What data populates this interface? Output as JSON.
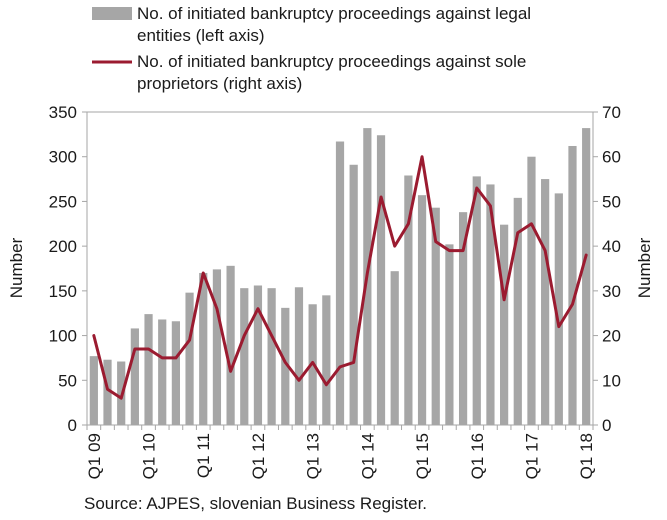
{
  "chart_data": {
    "type": "bar",
    "combo": "bar+line",
    "categories": [
      "Q1 09",
      "Q2 09",
      "Q3 09",
      "Q4 09",
      "Q1 10",
      "Q2 10",
      "Q3 10",
      "Q4 10",
      "Q1 11",
      "Q2 11",
      "Q3 11",
      "Q4 11",
      "Q1 12",
      "Q2 12",
      "Q3 12",
      "Q4 12",
      "Q1 13",
      "Q2 13",
      "Q3 13",
      "Q4 13",
      "Q1 14",
      "Q2 14",
      "Q3 14",
      "Q4 14",
      "Q1 15",
      "Q2 15",
      "Q3 15",
      "Q4 15",
      "Q1 16",
      "Q2 16",
      "Q3 16",
      "Q4 16",
      "Q1 17",
      "Q2 17",
      "Q3 17",
      "Q4 17",
      "Q1 18"
    ],
    "tick_labels": [
      "Q1 09",
      "Q1 10",
      "Q1 11",
      "Q1 12",
      "Q1 13",
      "Q1 14",
      "Q1 15",
      "Q1 16",
      "Q1 17",
      "Q1 18"
    ],
    "series": [
      {
        "name": "No. of initiated bankruptcy proceedings against legal entities (left axis)",
        "type": "bar",
        "axis": "left",
        "color": "#a6a6a6",
        "values": [
          77,
          73,
          71,
          108,
          124,
          118,
          116,
          148,
          170,
          174,
          178,
          153,
          156,
          153,
          131,
          154,
          135,
          145,
          317,
          291,
          332,
          324,
          172,
          279,
          257,
          243,
          202,
          238,
          278,
          269,
          224,
          254,
          300,
          275,
          259,
          312,
          332
        ]
      },
      {
        "name": "No. of initiated bankruptcy proceedings against sole proprietors (right axis)",
        "type": "line",
        "axis": "right",
        "color": "#9b1b30",
        "values": [
          20,
          8,
          6,
          17,
          17,
          15,
          15,
          19,
          34,
          26,
          12,
          20,
          26,
          20,
          14,
          10,
          14,
          9,
          13,
          14,
          34,
          51,
          40,
          45,
          60,
          41,
          39,
          39,
          53,
          49,
          28,
          43,
          45,
          39,
          22,
          27,
          38
        ]
      }
    ],
    "ylabel": "Number",
    "y2label": "Number",
    "ylim": [
      0,
      350
    ],
    "y2lim": [
      0,
      70
    ],
    "yticks": [
      "0",
      "50",
      "100",
      "150",
      "200",
      "250",
      "300",
      "350"
    ],
    "y2ticks": [
      "0",
      "10",
      "20",
      "30",
      "40",
      "50",
      "60",
      "70"
    ],
    "grid": false,
    "legend_position": "top",
    "source": "Source: AJPES, slovenian Business Register."
  }
}
